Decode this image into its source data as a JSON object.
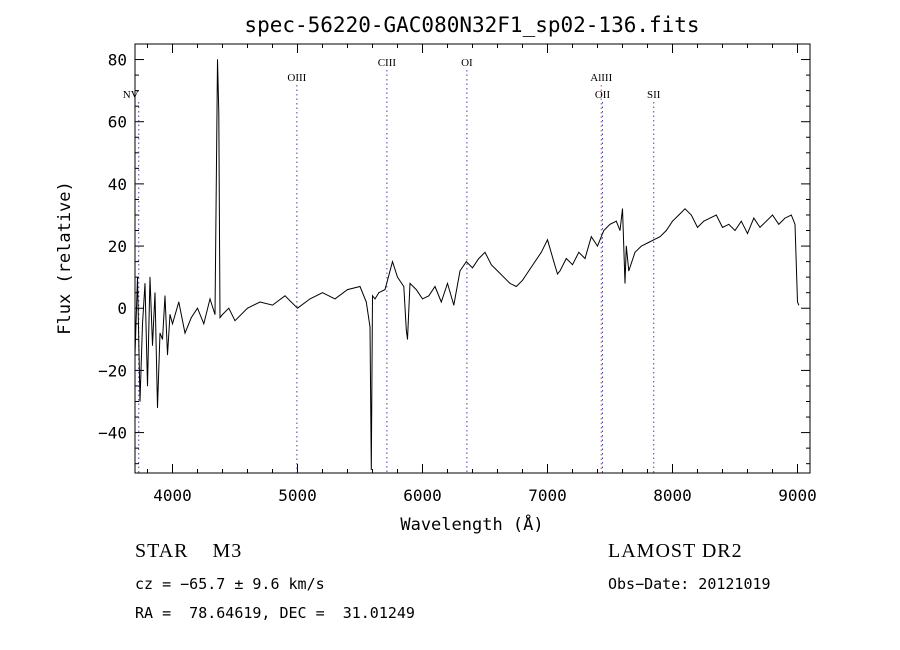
{
  "chart_data": {
    "type": "line",
    "title": "spec-56220-GAC080N32F1_sp02-136.fits",
    "xlabel": "Wavelength (Å)",
    "ylabel": "Flux (relative)",
    "xlim": [
      3700,
      9100
    ],
    "ylim": [
      -53,
      85
    ],
    "xticks": [
      4000,
      5000,
      6000,
      7000,
      8000,
      9000
    ],
    "yticks": [
      -40,
      -20,
      0,
      20,
      40,
      60,
      80
    ],
    "grid": false,
    "series": [
      {
        "color": "#000000",
        "x": [
          3700,
          3720,
          3740,
          3760,
          3780,
          3800,
          3820,
          3840,
          3860,
          3880,
          3900,
          3920,
          3940,
          3960,
          3980,
          4000,
          4050,
          4100,
          4150,
          4200,
          4250,
          4300,
          4340,
          4360,
          4370,
          4380,
          4400,
          4450,
          4500,
          4600,
          4700,
          4800,
          4900,
          5000,
          5100,
          5200,
          5300,
          5400,
          5500,
          5550,
          5580,
          5590,
          5600,
          5620,
          5650,
          5700,
          5760,
          5800,
          5850,
          5870,
          5880,
          5900,
          5950,
          6000,
          6050,
          6100,
          6150,
          6200,
          6250,
          6300,
          6350,
          6400,
          6450,
          6500,
          6550,
          6600,
          6650,
          6700,
          6750,
          6800,
          6850,
          6900,
          6950,
          7000,
          7050,
          7080,
          7100,
          7150,
          7200,
          7250,
          7300,
          7350,
          7400,
          7450,
          7500,
          7550,
          7580,
          7600,
          7620,
          7630,
          7650,
          7700,
          7750,
          7800,
          7850,
          7900,
          7950,
          8000,
          8050,
          8100,
          8150,
          8200,
          8250,
          8300,
          8350,
          8400,
          8450,
          8500,
          8550,
          8600,
          8650,
          8700,
          8750,
          8800,
          8850,
          8900,
          8950,
          8980,
          9000,
          9010
        ],
        "y": [
          -15,
          10,
          -30,
          -5,
          8,
          -25,
          10,
          -12,
          5,
          -32,
          -8,
          -10,
          4,
          -15,
          -2,
          -5,
          2,
          -8,
          -3,
          0,
          -5,
          3,
          -2,
          80,
          63,
          -3,
          -2,
          0,
          -4,
          0,
          2,
          1,
          4,
          0,
          3,
          5,
          3,
          6,
          7,
          2,
          -6,
          -52,
          4,
          3,
          5,
          6,
          15,
          10,
          7,
          -7,
          -10,
          8,
          6,
          3,
          4,
          7,
          2,
          8,
          1,
          12,
          15,
          13,
          16,
          18,
          14,
          12,
          10,
          8,
          7,
          9,
          12,
          15,
          18,
          22,
          15,
          11,
          12,
          16,
          14,
          18,
          16,
          23,
          20,
          25,
          27,
          28,
          25,
          32,
          8,
          20,
          12,
          18,
          20,
          21,
          22,
          23,
          25,
          28,
          30,
          32,
          30,
          26,
          28,
          29,
          30,
          26,
          27,
          25,
          28,
          24,
          29,
          26,
          28,
          30,
          27,
          29,
          30,
          27,
          2,
          1
        ]
      }
    ],
    "vlines": [
      {
        "x": 3730,
        "label": "NV",
        "color": "#4444aa",
        "dx": -8,
        "dy": 32
      },
      {
        "x": 4995,
        "label": "OIII",
        "color": "#4444aa",
        "dx": 0,
        "dy": 15
      },
      {
        "x": 5715,
        "label": "CIII",
        "color": "#4444aa",
        "dx": 0,
        "dy": 0
      },
      {
        "x": 6355,
        "label": "OI",
        "color": "#4444aa",
        "dx": 0,
        "dy": 0
      },
      {
        "x": 7430,
        "label": "AlIII",
        "color": "#cc4444",
        "dx": 0,
        "dy": 15
      },
      {
        "x": 7440,
        "label": "OII",
        "color": "#4444aa",
        "dx": 0,
        "dy": 32
      },
      {
        "x": 7850,
        "label": "SII",
        "color": "#4444aa",
        "dx": 0,
        "dy": 32
      }
    ]
  },
  "info": {
    "class_label": "STAR    M3",
    "survey": "LAMOST DR2",
    "cz": "cz = −65.7 ± 9.6 km/s",
    "obs_date": "Obs−Date: 20121019",
    "radec": "RA =  78.64619, DEC =  31.01249"
  }
}
